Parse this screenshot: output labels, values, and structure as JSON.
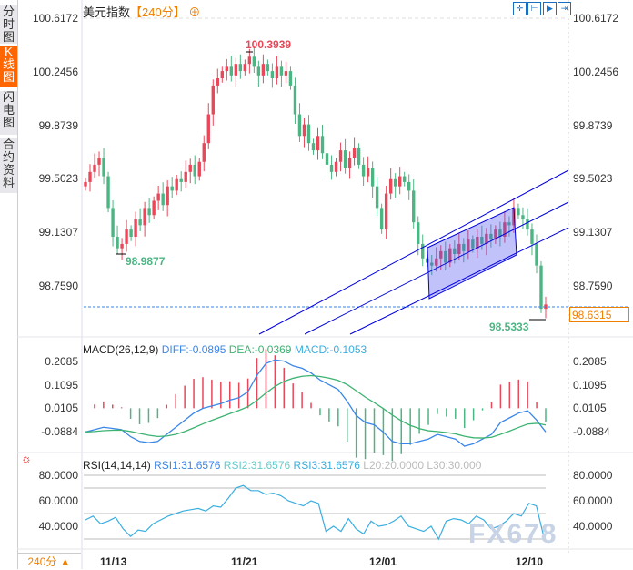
{
  "sidebar": {
    "tabs": [
      {
        "label": "分时图"
      },
      {
        "label": "K线图",
        "active": true
      },
      {
        "label": "闪电图"
      },
      {
        "label": "合约资料"
      }
    ]
  },
  "header": {
    "name": "美元指数",
    "period": "【240分】",
    "add_icon": "circle-plus-icon"
  },
  "toolbar": {
    "icons": [
      "crosshair-icon",
      "fit-icon",
      "play-icon",
      "scroll-end-icon"
    ]
  },
  "price_axis": {
    "ticks": [
      "100.6172",
      "100.2456",
      "99.8739",
      "99.5023",
      "99.1307",
      "98.7590"
    ],
    "current": "98.6315"
  },
  "annotations": {
    "high": "100.3939",
    "low1": "98.9877",
    "low2": "98.5333"
  },
  "colors": {
    "up": "#e8485a",
    "down": "#4db583",
    "channel": "#0000e0",
    "diff": "#3a86e8",
    "dea": "#3cb371",
    "rsi": "#3aaee0"
  },
  "candles_close": [
    99.48,
    99.55,
    99.6,
    99.65,
    99.52,
    99.3,
    99.1,
    99.02,
    99.05,
    99.15,
    99.1,
    99.22,
    99.18,
    99.3,
    99.25,
    99.35,
    99.4,
    99.32,
    99.45,
    99.42,
    99.5,
    99.48,
    99.55,
    99.6,
    99.52,
    99.62,
    99.75,
    99.95,
    100.15,
    100.2,
    100.25,
    100.28,
    100.22,
    100.3,
    100.25,
    100.3,
    100.35,
    100.28,
    100.22,
    100.3,
    100.25,
    100.2,
    100.28,
    100.22,
    100.25,
    100.15,
    99.95,
    99.8,
    99.88,
    99.75,
    99.7,
    99.8,
    99.68,
    99.6,
    99.55,
    99.62,
    99.7,
    99.58,
    99.65,
    99.72,
    99.6,
    99.52,
    99.58,
    99.45,
    99.3,
    99.15,
    99.4,
    99.5,
    99.45,
    99.52,
    99.48,
    99.42,
    99.2,
    99.05,
    98.95,
    98.92,
    98.9,
    98.95,
    99.0,
    98.92,
    99.02,
    98.98,
    99.05,
    99.0,
    99.08,
    99.02,
    99.1,
    99.05,
    99.12,
    99.08,
    99.15,
    99.1,
    99.2,
    99.18,
    99.3,
    99.25,
    99.22,
    99.15,
    99.05,
    98.9,
    98.6,
    98.63
  ],
  "macd": {
    "label": "MACD(26,12,9)",
    "diff_label": "DIFF:-0.0895",
    "dea_label": "DEA:-0.0369",
    "macd_label": "MACD:-0.1053",
    "ticks": [
      "0.2085",
      "0.1095",
      "0.0105",
      "-0.0884"
    ],
    "diff": [
      -0.09,
      -0.08,
      -0.07,
      -0.075,
      -0.08,
      -0.11,
      -0.13,
      -0.135,
      -0.13,
      -0.1,
      -0.07,
      -0.04,
      -0.01,
      0.01,
      0.02,
      0.03,
      0.045,
      0.055,
      0.08,
      0.15,
      0.2,
      0.215,
      0.21,
      0.19,
      0.18,
      0.16,
      0.13,
      0.11,
      0.09,
      0.04,
      -0.02,
      -0.05,
      -0.06,
      -0.09,
      -0.13,
      -0.14,
      -0.14,
      -0.13,
      -0.12,
      -0.1,
      -0.11,
      -0.12,
      -0.15,
      -0.14,
      -0.12,
      -0.1,
      -0.05,
      -0.03,
      -0.01,
      0.0,
      -0.04,
      -0.0895
    ]
  },
  "rsi": {
    "label": "RSI(14,14,14)",
    "rsi1": "RSI1:31.6576",
    "rsi2": "RSI2:31.6576",
    "rsi3": "RSI3:31.6576",
    "l20": "L20:20.0000",
    "l30": "L30:30.000",
    "ticks": [
      "80.0000",
      "60.0000",
      "40.0000"
    ],
    "values": [
      45,
      48,
      42,
      44,
      47,
      38,
      32,
      37,
      36,
      42,
      45,
      48,
      50,
      52,
      53,
      54,
      52,
      56,
      55,
      62,
      70,
      72,
      68,
      68,
      65,
      66,
      64,
      60,
      58,
      56,
      60,
      58,
      36,
      40,
      36,
      46,
      38,
      34,
      44,
      40,
      41,
      44,
      48,
      40,
      38,
      36,
      40,
      30,
      44,
      46,
      45,
      42,
      48,
      45,
      38,
      40,
      44,
      50,
      48,
      58,
      56,
      31.66
    ]
  },
  "xaxis": [
    "11/13",
    "11/21",
    "12/01",
    "12/10"
  ],
  "period_button": "240分 ▲",
  "watermark": "FX678"
}
